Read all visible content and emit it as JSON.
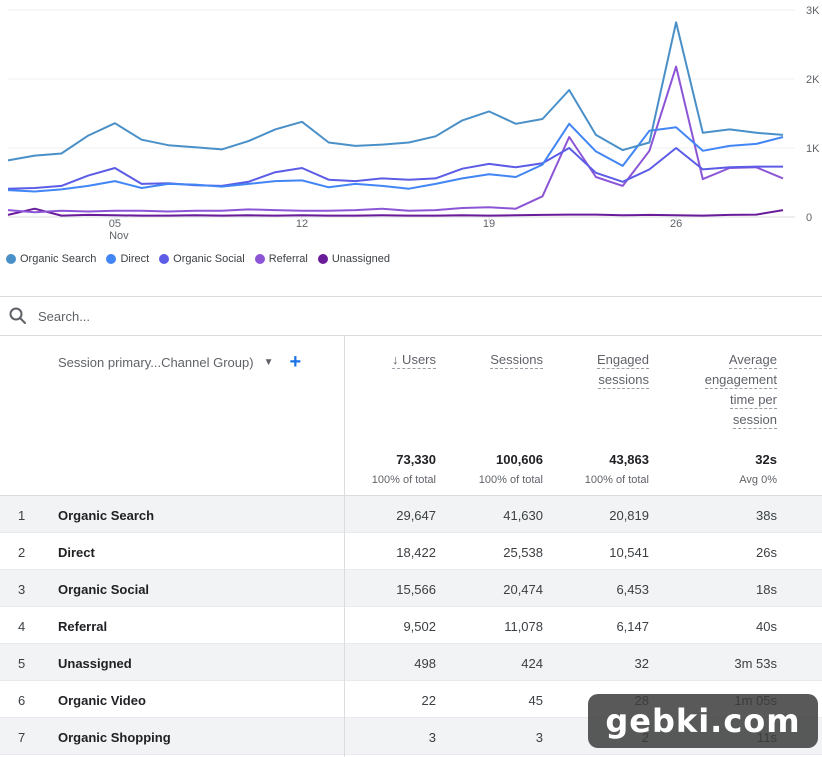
{
  "chart_data": {
    "type": "line",
    "x": [
      1,
      2,
      3,
      4,
      5,
      6,
      7,
      8,
      9,
      10,
      11,
      12,
      13,
      14,
      15,
      16,
      17,
      18,
      19,
      20,
      21,
      22,
      23,
      24,
      25,
      26,
      27,
      28,
      29,
      30
    ],
    "x_tick_labels": [
      {
        "x": 5,
        "label": "05",
        "sub": "Nov"
      },
      {
        "x": 12,
        "label": "12",
        "sub": ""
      },
      {
        "x": 19,
        "label": "19",
        "sub": ""
      },
      {
        "x": 26,
        "label": "26",
        "sub": ""
      }
    ],
    "y_ticks": [
      {
        "value": 0,
        "label": "0"
      },
      {
        "value": 1000,
        "label": "1K"
      },
      {
        "value": 2000,
        "label": "2K"
      },
      {
        "value": 3000,
        "label": "3K"
      }
    ],
    "ylim": [
      0,
      3000
    ],
    "grid": true,
    "legend_position": "bottom-left",
    "series": [
      {
        "name": "Organic Search",
        "color": "#4a90c8",
        "values": [
          820,
          890,
          920,
          1180,
          1360,
          1120,
          1040,
          1010,
          980,
          1100,
          1270,
          1380,
          1080,
          1030,
          1050,
          1080,
          1170,
          1400,
          1530,
          1350,
          1420,
          1840,
          1190,
          970,
          1080,
          2820,
          1220,
          1270,
          1220,
          1190
        ]
      },
      {
        "name": "Direct",
        "color": "#4285f4",
        "values": [
          390,
          370,
          400,
          450,
          520,
          420,
          480,
          470,
          440,
          480,
          520,
          530,
          430,
          480,
          450,
          410,
          480,
          560,
          620,
          580,
          760,
          1350,
          950,
          740,
          1250,
          1300,
          960,
          1030,
          1060,
          1160
        ]
      },
      {
        "name": "Organic Social",
        "color": "#5c5ce6",
        "values": [
          410,
          420,
          450,
          600,
          710,
          480,
          490,
          460,
          450,
          510,
          650,
          710,
          540,
          520,
          560,
          540,
          560,
          700,
          770,
          720,
          780,
          1000,
          640,
          510,
          690,
          1000,
          690,
          720,
          730,
          730
        ]
      },
      {
        "name": "Referral",
        "color": "#8c55d6",
        "values": [
          100,
          70,
          90,
          80,
          90,
          90,
          80,
          90,
          90,
          110,
          100,
          90,
          90,
          100,
          120,
          90,
          100,
          130,
          140,
          120,
          300,
          1160,
          580,
          450,
          960,
          2180,
          550,
          710,
          720,
          560
        ]
      },
      {
        "name": "Unassigned",
        "color": "#6a1b9a",
        "values": [
          30,
          120,
          20,
          30,
          25,
          20,
          20,
          25,
          20,
          25,
          20,
          25,
          20,
          20,
          25,
          20,
          20,
          25,
          20,
          25,
          30,
          35,
          35,
          25,
          30,
          25,
          20,
          30,
          35,
          100
        ]
      }
    ]
  },
  "search": {
    "placeholder": "Search..."
  },
  "table": {
    "dimension_header": "Session primary...Channel Group)",
    "add_label": "+",
    "columns": [
      {
        "key": "users",
        "lines": [
          "Users"
        ],
        "sort_arrow": "↓",
        "total": "73,330",
        "total_sub": "100% of total"
      },
      {
        "key": "sessions",
        "lines": [
          "Sessions"
        ],
        "sort_arrow": "",
        "total": "100,606",
        "total_sub": "100% of total"
      },
      {
        "key": "engaged",
        "lines": [
          "Engaged",
          "sessions"
        ],
        "sort_arrow": "",
        "total": "43,863",
        "total_sub": "100% of total"
      },
      {
        "key": "avg",
        "lines": [
          "Average",
          "engagement",
          "time per",
          "session"
        ],
        "sort_arrow": "",
        "total": "32s",
        "total_sub": "Avg 0%"
      }
    ],
    "rows": [
      {
        "idx": "1",
        "name": "Organic Search",
        "users": "29,647",
        "sessions": "41,630",
        "engaged": "20,819",
        "avg": "38s"
      },
      {
        "idx": "2",
        "name": "Direct",
        "users": "18,422",
        "sessions": "25,538",
        "engaged": "10,541",
        "avg": "26s"
      },
      {
        "idx": "3",
        "name": "Organic Social",
        "users": "15,566",
        "sessions": "20,474",
        "engaged": "6,453",
        "avg": "18s"
      },
      {
        "idx": "4",
        "name": "Referral",
        "users": "9,502",
        "sessions": "11,078",
        "engaged": "6,147",
        "avg": "40s"
      },
      {
        "idx": "5",
        "name": "Unassigned",
        "users": "498",
        "sessions": "424",
        "engaged": "32",
        "avg": "3m 53s"
      },
      {
        "idx": "6",
        "name": "Organic Video",
        "users": "22",
        "sessions": "45",
        "engaged": "28",
        "avg": "1m 05s"
      },
      {
        "idx": "7",
        "name": "Organic Shopping",
        "users": "3",
        "sessions": "3",
        "engaged": "2",
        "avg": "11s"
      }
    ]
  },
  "watermark": {
    "text": "gebki.com"
  }
}
